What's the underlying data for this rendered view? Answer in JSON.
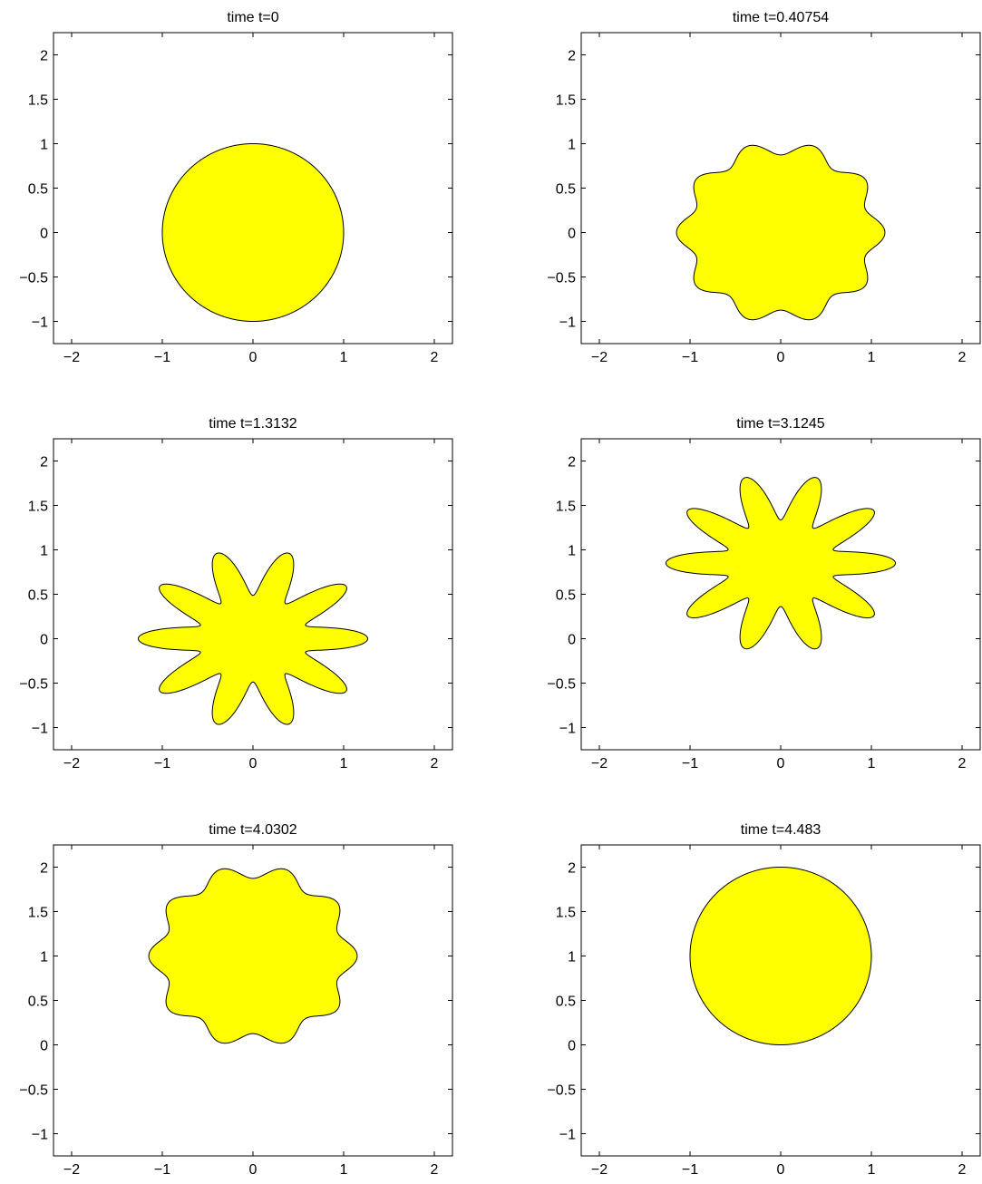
{
  "chart_data": [
    {
      "type": "area",
      "title": "time t=0",
      "xlim": [
        -2.2,
        2.2
      ],
      "ylim": [
        -1.25,
        2.25
      ],
      "xticks": [
        "−2",
        "−1",
        "0",
        "1",
        "2"
      ],
      "yticks": [
        "−1",
        "−0.5",
        "0",
        "0.5",
        "1",
        "1.5",
        "2"
      ],
      "fill_color": "#ffff00",
      "shape": {
        "center": [
          0,
          0
        ],
        "base_radius": 1.0,
        "lobes": 0,
        "lobe_amplitude": 0.0,
        "stretch_x": 1.0
      }
    },
    {
      "type": "area",
      "title": "time t=0.40754",
      "xlim": [
        -2.2,
        2.2
      ],
      "ylim": [
        -1.25,
        2.25
      ],
      "xticks": [
        "−2",
        "−1",
        "0",
        "1",
        "2"
      ],
      "yticks": [
        "−1",
        "−0.5",
        "0",
        "0.5",
        "1",
        "1.5",
        "2"
      ],
      "fill_color": "#ffff00",
      "shape": {
        "center": [
          0,
          0
        ],
        "base_radius": 0.95,
        "lobes": 10,
        "lobe_amplitude": 0.08,
        "stretch_x": 1.12
      }
    },
    {
      "type": "area",
      "title": "time t=1.3132",
      "xlim": [
        -2.2,
        2.2
      ],
      "ylim": [
        -1.25,
        2.25
      ],
      "xticks": [
        "−2",
        "−1",
        "0",
        "1",
        "2"
      ],
      "yticks": [
        "−1",
        "−0.5",
        "0",
        "0.5",
        "1",
        "1.5",
        "2"
      ],
      "fill_color": "#ffff00",
      "shape": {
        "center": [
          0,
          0
        ],
        "base_radius": 0.75,
        "lobes": 10,
        "lobe_amplitude": 0.35,
        "stretch_x": 1.25
      }
    },
    {
      "type": "area",
      "title": "time t=3.1245",
      "xlim": [
        -2.2,
        2.2
      ],
      "ylim": [
        -1.25,
        2.25
      ],
      "xticks": [
        "−2",
        "−1",
        "0",
        "1",
        "2"
      ],
      "yticks": [
        "−1",
        "−0.5",
        "0",
        "0.5",
        "1",
        "1.5",
        "2"
      ],
      "fill_color": "#ffff00",
      "shape": {
        "center": [
          0,
          0.85
        ],
        "base_radius": 0.75,
        "lobes": 10,
        "lobe_amplitude": 0.35,
        "stretch_x": 1.25
      }
    },
    {
      "type": "area",
      "title": "time t=4.0302",
      "xlim": [
        -2.2,
        2.2
      ],
      "ylim": [
        -1.25,
        2.25
      ],
      "xticks": [
        "−2",
        "−1",
        "0",
        "1",
        "2"
      ],
      "yticks": [
        "−1",
        "−0.5",
        "0",
        "0.5",
        "1",
        "1.5",
        "2"
      ],
      "fill_color": "#ffff00",
      "shape": {
        "center": [
          0,
          1.0
        ],
        "base_radius": 0.95,
        "lobes": 10,
        "lobe_amplitude": 0.08,
        "stretch_x": 1.12
      }
    },
    {
      "type": "area",
      "title": "time t=4.483",
      "xlim": [
        -2.2,
        2.2
      ],
      "ylim": [
        -1.25,
        2.25
      ],
      "xticks": [
        "−2",
        "−1",
        "0",
        "1",
        "2"
      ],
      "yticks": [
        "−1",
        "−0.5",
        "0",
        "0.5",
        "1",
        "1.5",
        "2"
      ],
      "fill_color": "#ffff00",
      "shape": {
        "center": [
          0,
          1.0
        ],
        "base_radius": 1.0,
        "lobes": 0,
        "lobe_amplitude": 0.0,
        "stretch_x": 1.0
      }
    }
  ]
}
